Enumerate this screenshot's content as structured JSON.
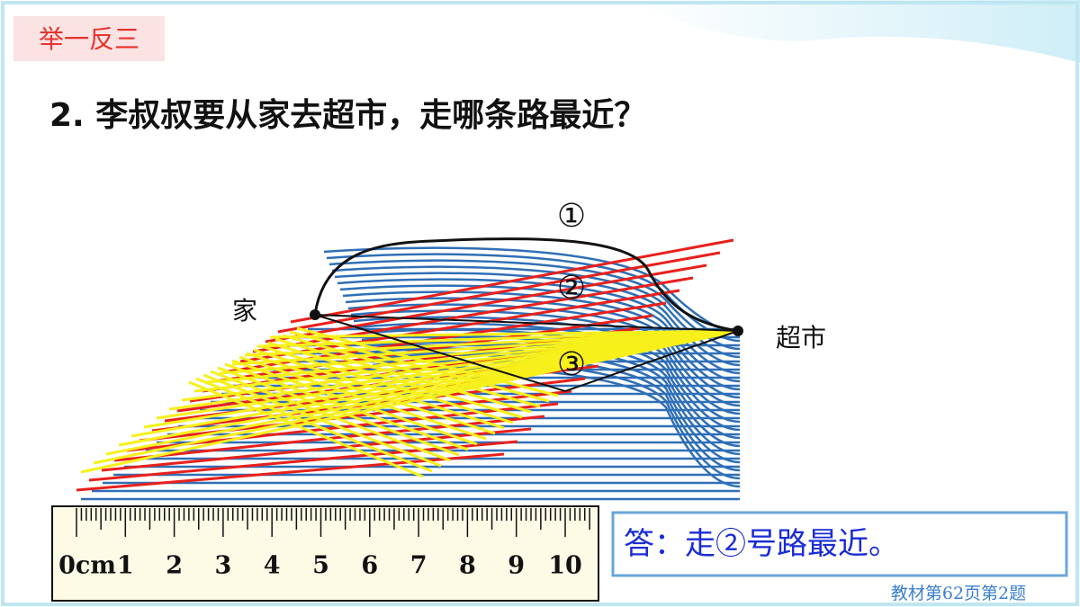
{
  "badge": "举一反三",
  "question": "2. 李叔叔要从家去超市，走哪条路最近？",
  "diagram": {
    "route_labels": [
      "①",
      "②",
      "③"
    ],
    "home": "家",
    "market": "超市"
  },
  "ruler": {
    "labels": [
      "0cm",
      "1",
      "2",
      "3",
      "4",
      "5",
      "6",
      "7",
      "8",
      "9",
      "10"
    ]
  },
  "answer": "答：走②号路最近。",
  "footer": "教材第62页第2题"
}
